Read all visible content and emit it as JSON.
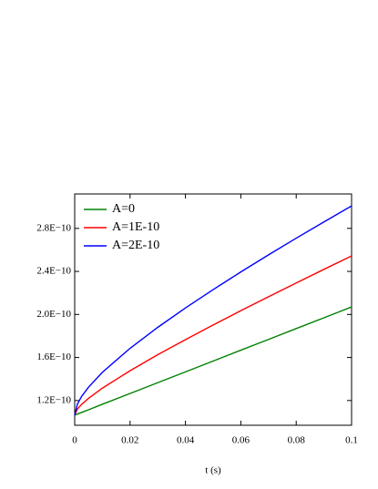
{
  "chart_data": {
    "type": "line",
    "x_label": "t (s)",
    "x": [
      0,
      0.001,
      0.0025,
      0.005,
      0.01,
      0.02,
      0.03,
      0.04,
      0.05,
      0.06,
      0.07,
      0.08,
      0.09,
      0.1
    ],
    "series": [
      {
        "name": "A=0",
        "color": "#008000",
        "values": [
          1.064e-10,
          1.074e-10,
          1.089e-10,
          1.114e-10,
          1.165e-10,
          1.265e-10,
          1.366e-10,
          1.466e-10,
          1.567e-10,
          1.668e-10,
          1.768e-10,
          1.869e-10,
          1.969e-10,
          2.07e-10
        ]
      },
      {
        "name": "A=1E-10",
        "color": "#ff0000",
        "values": [
          1.064e-10,
          1.121e-10,
          1.164e-10,
          1.22e-10,
          1.315e-10,
          1.477e-10,
          1.626e-10,
          1.766e-10,
          1.902e-10,
          2.035e-10,
          2.165e-10,
          2.293e-10,
          2.419e-10,
          2.544e-10
        ]
      },
      {
        "name": "A=2E-10",
        "color": "#0000ff",
        "values": [
          1.064e-10,
          1.168e-10,
          1.238e-10,
          1.324e-10,
          1.462e-10,
          1.685e-10,
          1.88e-10,
          2.06e-10,
          2.231e-10,
          2.395e-10,
          2.554e-10,
          2.709e-10,
          2.86e-10,
          3.009e-10
        ]
      }
    ],
    "xlim": [
      0,
      0.1
    ],
    "xticks": [
      0,
      0.02,
      0.04,
      0.06,
      0.08,
      0.1
    ],
    "ylim": [
      9.7e-11,
      3.12e-10
    ],
    "yticks": [
      {
        "value": 1.2e-10,
        "label": "1.2E−10"
      },
      {
        "value": 1.6e-10,
        "label": "1.6E−10"
      },
      {
        "value": 2e-10,
        "label": "2.0E−10"
      },
      {
        "value": 2.4e-10,
        "label": "2.4E−10"
      },
      {
        "value": 2.8e-10,
        "label": "2.8E−10"
      }
    ],
    "legend": "upper left"
  }
}
